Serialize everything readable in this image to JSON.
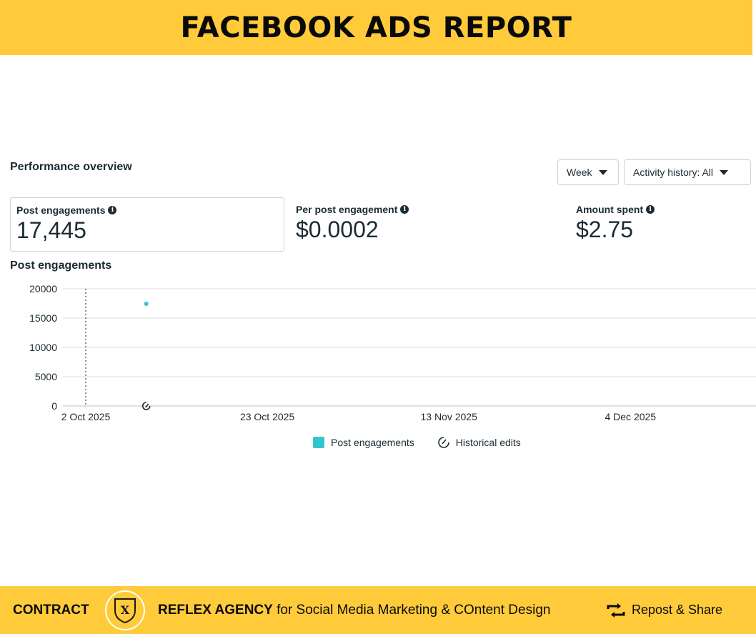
{
  "header": {
    "title": "FACEBOOK ADS REPORT"
  },
  "performance": {
    "title": "Performance overview",
    "week_dropdown": "Week",
    "activity_dropdown": "Activity history: All"
  },
  "metrics": [
    {
      "label": "Post engagements",
      "value": "17,445"
    },
    {
      "label": "Per post engagement",
      "value": "$0.0002"
    },
    {
      "label": "Amount spent",
      "value": "$2.75"
    }
  ],
  "chart_data": {
    "type": "scatter",
    "title": "Post engagements",
    "ylim": [
      0,
      20000
    ],
    "yticks": [
      0,
      5000,
      10000,
      15000,
      20000
    ],
    "ytick_labels": [
      "0",
      "5000",
      "10000",
      "15000",
      "20000"
    ],
    "xtick_labels": [
      "2 Oct 2025",
      "23 Oct 2025",
      "13 Nov 2025",
      "4 Dec 2025"
    ],
    "xtick_days": [
      0,
      21,
      42,
      63
    ],
    "x_range_days": [
      0,
      77
    ],
    "series": [
      {
        "name": "Post engagements",
        "color": "#2fc7cc",
        "points": [
          {
            "day": 7,
            "value": 17445
          }
        ]
      }
    ],
    "historical_edits": [
      {
        "day": 7
      }
    ],
    "reference_line_day": 0,
    "legend": [
      "Post engagements",
      "Historical edits"
    ]
  },
  "footer": {
    "contract": "CONTRACT",
    "logo_letter": "X",
    "agency_bold": "REFLEX AGENCY",
    "agency_rest": " for Social Media Marketing & COntent Design",
    "repost": "Repost & Share"
  },
  "colors": {
    "accent": "#ffcb3b",
    "series": "#2fc7cc",
    "text": "#1c2b33",
    "grid": "#dadde1"
  }
}
